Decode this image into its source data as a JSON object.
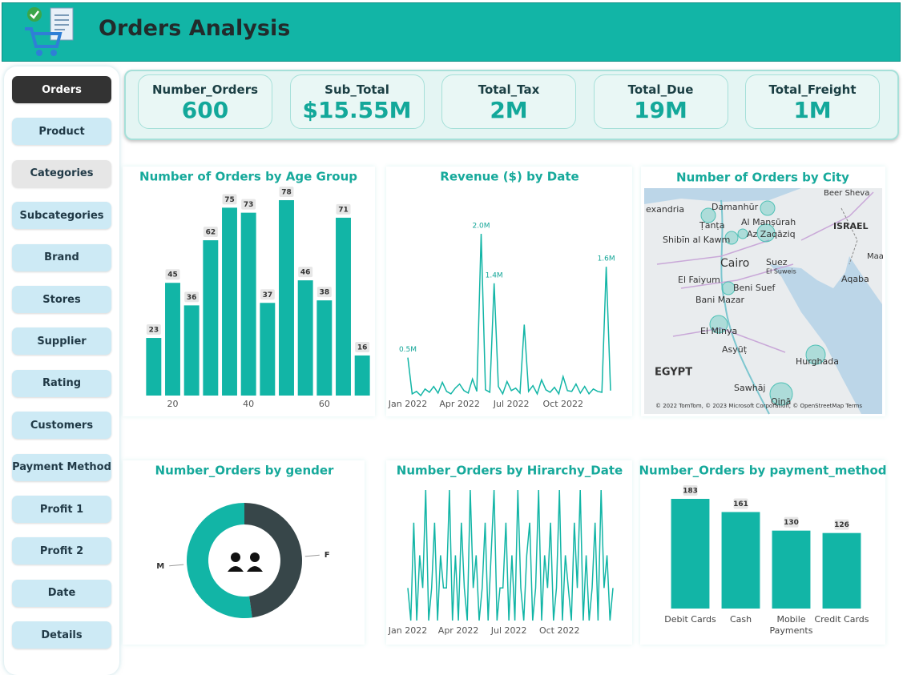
{
  "header": {
    "title": "Orders Analysis"
  },
  "nav": {
    "items": [
      "Orders",
      "Product",
      "Categories",
      "Subcategories",
      "Brand",
      "Stores",
      "Supplier",
      "Rating",
      "Customers",
      "Payment Method",
      "Profit 1",
      "Profit 2",
      "Date",
      "Details"
    ]
  },
  "kpis": [
    {
      "label": "Number_Orders",
      "value": "600"
    },
    {
      "label": "Sub_Total",
      "value": "$15.55M"
    },
    {
      "label": "Total_Tax",
      "value": "2M"
    },
    {
      "label": "Total_Due",
      "value": "19M"
    },
    {
      "label": "Total_Freight",
      "value": "1M"
    }
  ],
  "map": {
    "title": "Number of Orders by City",
    "labels": [
      "exandria",
      "Damanhūr",
      "Ṭanṭa",
      "Al Manṣūrah",
      "Shibīn al Kawm",
      "Az Zaqāziq",
      "Cairo",
      "Suez",
      "El Suweis",
      "El Faiyum",
      "Beni Suef",
      "Bani Mazar",
      "El Minya",
      "Asyūṭ",
      "EGYPT",
      "Sawhāj",
      "Qinā",
      "Hurghada",
      "ISRAEL",
      "Aqaba",
      "Beer Sheva",
      "Maa",
      "© 2022 TomTom, © 2023 Microsoft Corporation, © OpenStreetMap Terms"
    ]
  },
  "chart_data": [
    {
      "type": "bar",
      "title": "Number of Orders by Age Group",
      "color": "#12b5a6",
      "x": [
        15,
        20,
        25,
        30,
        35,
        40,
        45,
        50,
        55,
        60,
        65,
        70
      ],
      "values": [
        23,
        45,
        36,
        62,
        75,
        73,
        37,
        78,
        46,
        38,
        71,
        16
      ],
      "xlim": [
        12.5,
        72.5
      ],
      "xticks": [
        20,
        40,
        60
      ]
    },
    {
      "type": "line",
      "title": "Revenue ($) by Date",
      "color": "#12b5a6",
      "values": [
        500000,
        60000,
        90000,
        40000,
        120000,
        80000,
        150000,
        70000,
        200000,
        90000,
        60000,
        130000,
        180000,
        100000,
        70000,
        240000,
        90000,
        2000000,
        110000,
        80000,
        1400000,
        150000,
        60000,
        210000,
        100000,
        130000,
        70000,
        900000,
        90000,
        160000,
        60000,
        230000,
        110000,
        80000,
        140000,
        60000,
        270000,
        100000,
        90000,
        180000,
        70000,
        150000,
        60000,
        120000,
        90000,
        80000,
        1600000,
        100000
      ],
      "value_labels": [
        "0.5M",
        null,
        null,
        null,
        null,
        null,
        null,
        null,
        null,
        null,
        null,
        null,
        null,
        null,
        null,
        null,
        null,
        "2.0M",
        null,
        null,
        "1.4M",
        null,
        null,
        null,
        null,
        null,
        null,
        null,
        null,
        null,
        null,
        null,
        null,
        null,
        null,
        null,
        null,
        null,
        null,
        null,
        null,
        null,
        null,
        null,
        null,
        null,
        "1.6M",
        null
      ],
      "xlim": [
        0,
        47
      ],
      "xticks": [
        {
          "value": 0,
          "label": "Jan 2022"
        },
        {
          "value": 12,
          "label": "Apr 2022"
        },
        {
          "value": 24,
          "label": "Jul 2022"
        },
        {
          "value": 36,
          "label": "Oct 2022"
        }
      ]
    },
    {
      "type": "pie",
      "title": "Number_Orders by gender",
      "categories": [
        "M",
        "F"
      ],
      "values": [
        313,
        287
      ],
      "colors": [
        "#12b5a6",
        "#374649"
      ],
      "donut": true
    },
    {
      "type": "line",
      "title": "Number_Orders by Hirarchy_Date",
      "color": "#12b5a6",
      "values": [
        2,
        1,
        4,
        1,
        3,
        2,
        5,
        1,
        2,
        4,
        1,
        3,
        2,
        2,
        5,
        1,
        3,
        1,
        4,
        2,
        1,
        5,
        2,
        3,
        1,
        2,
        4,
        1,
        3,
        5,
        1,
        2,
        2,
        4,
        1,
        3,
        1,
        5,
        2,
        1,
        3,
        4,
        1,
        2,
        5,
        1,
        3,
        2,
        4,
        1,
        2,
        5,
        1,
        3,
        2,
        1,
        4,
        2,
        5,
        1,
        3,
        1,
        2,
        4,
        1,
        5,
        2,
        3,
        1,
        2
      ],
      "xlim": [
        0,
        69
      ],
      "xticks": [
        {
          "value": 0,
          "label": "Jan 2022"
        },
        {
          "value": 17,
          "label": "Apr 2022"
        },
        {
          "value": 34,
          "label": "Jul 2022"
        },
        {
          "value": 51,
          "label": "Oct 2022"
        }
      ]
    },
    {
      "type": "bar",
      "title": "Number_Orders by payment_method",
      "color": "#12b5a6",
      "categories": [
        "Debit Cards",
        "Cash",
        "Mobile Payments",
        "Credit Cards"
      ],
      "values": [
        183,
        161,
        130,
        126
      ]
    }
  ]
}
